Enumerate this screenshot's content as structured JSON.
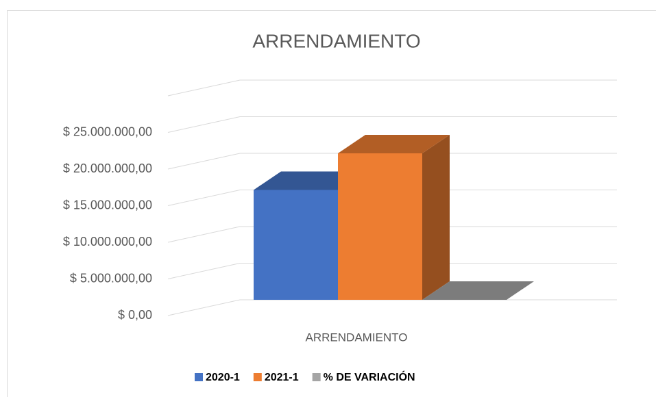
{
  "chart_data": {
    "type": "bar3d",
    "title": "ARRENDAMIENTO",
    "categories": [
      "ARRENDAMIENTO"
    ],
    "series": [
      {
        "name": "2020-1",
        "color": "#4472c4",
        "values": [
          15000000
        ]
      },
      {
        "name": "2021-1",
        "color": "#ed7d31",
        "values": [
          20000000
        ]
      },
      {
        "name": "%  DE VARIACIÓN",
        "color": "#a5a5a5",
        "values": [
          0
        ]
      }
    ],
    "ylim": [
      0,
      30000000
    ],
    "yticks": [
      {
        "value": 0,
        "label": "$ 0,00"
      },
      {
        "value": 5000000,
        "label": "$ 5.000.000,00"
      },
      {
        "value": 10000000,
        "label": "$ 10.000.000,00"
      },
      {
        "value": 15000000,
        "label": "$ 15.000.000,00"
      },
      {
        "value": 20000000,
        "label": "$ 20.000.000,00"
      },
      {
        "value": 25000000,
        "label": "$ 25.000.000,00"
      }
    ],
    "grid": true,
    "legend": "bottom"
  }
}
